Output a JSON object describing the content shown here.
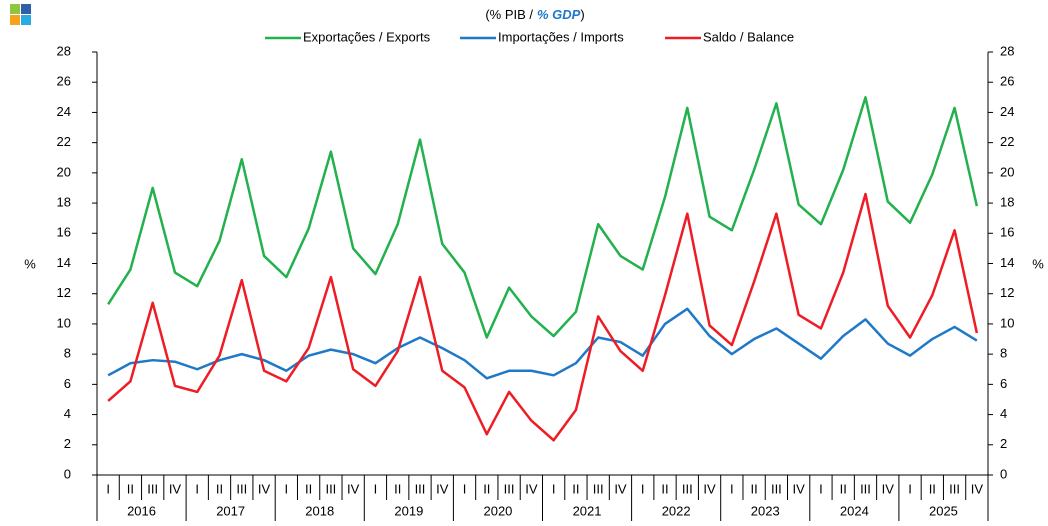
{
  "chart_data": {
    "type": "line",
    "subtitle": [
      "(% PIB /",
      "% GDP",
      ")"
    ],
    "categories": [
      "I",
      "II",
      "III",
      "IV",
      "I",
      "II",
      "III",
      "IV",
      "I",
      "II",
      "III",
      "IV",
      "I",
      "II",
      "III",
      "IV",
      "I",
      "II",
      "III",
      "IV",
      "I",
      "II",
      "III",
      "IV",
      "I",
      "II",
      "III",
      "IV",
      "I",
      "II",
      "III",
      "IV",
      "I",
      "II",
      "III",
      "IV",
      "I",
      "II",
      "III",
      "IV"
    ],
    "years": [
      "2016",
      "2017",
      "2018",
      "2019",
      "2020",
      "2021",
      "2022",
      "2023",
      "2024",
      "2025"
    ],
    "ylabel": "%",
    "y2label": "%",
    "ylim": [
      0,
      28
    ],
    "yticks": [
      0,
      2,
      4,
      6,
      8,
      10,
      12,
      14,
      16,
      18,
      20,
      22,
      24,
      26,
      28
    ],
    "y2lim": [
      0,
      28
    ],
    "y2ticks": [
      0,
      2,
      4,
      6,
      8,
      10,
      12,
      14,
      16,
      18,
      20,
      22,
      24,
      26,
      28
    ],
    "grid": false,
    "series": [
      {
        "name": "Exportações / Exports",
        "color": "#22b14c",
        "values": [
          11.3,
          13.6,
          19.0,
          13.4,
          12.5,
          15.5,
          20.9,
          14.5,
          13.1,
          16.3,
          21.4,
          15.0,
          13.3,
          16.6,
          22.2,
          15.3,
          13.4,
          9.1,
          12.4,
          10.5,
          9.2,
          10.8,
          16.6,
          14.5,
          13.6,
          18.4,
          24.3,
          17.1,
          16.2,
          20.2,
          24.6,
          17.9,
          16.6,
          20.2,
          25.0,
          18.1,
          16.7,
          19.9,
          24.3,
          17.8
        ]
      },
      {
        "name": "Importações / Imports",
        "color": "#1f78c8",
        "values": [
          6.6,
          7.4,
          7.6,
          7.5,
          7.0,
          7.6,
          8.0,
          7.6,
          6.9,
          7.9,
          8.3,
          8.0,
          7.4,
          8.4,
          9.1,
          8.4,
          7.6,
          6.4,
          6.9,
          6.9,
          6.6,
          7.4,
          9.1,
          8.8,
          7.9,
          10.0,
          11.0,
          9.2,
          8.0,
          9.0,
          9.7,
          8.7,
          7.7,
          9.2,
          10.3,
          8.7,
          7.9,
          9.0,
          9.8,
          8.9
        ]
      },
      {
        "name": "Saldo / Balance",
        "color": "#ee1c25",
        "values": [
          4.9,
          6.2,
          11.4,
          5.9,
          5.5,
          7.9,
          12.9,
          6.9,
          6.2,
          8.4,
          13.1,
          7.0,
          5.9,
          8.2,
          13.1,
          6.9,
          5.8,
          2.7,
          5.5,
          3.6,
          2.3,
          4.3,
          10.5,
          8.2,
          6.9,
          11.9,
          17.3,
          9.9,
          8.6,
          12.8,
          17.3,
          10.6,
          9.7,
          13.4,
          18.6,
          11.2,
          9.1,
          11.9,
          16.2,
          9.4
        ]
      }
    ]
  }
}
